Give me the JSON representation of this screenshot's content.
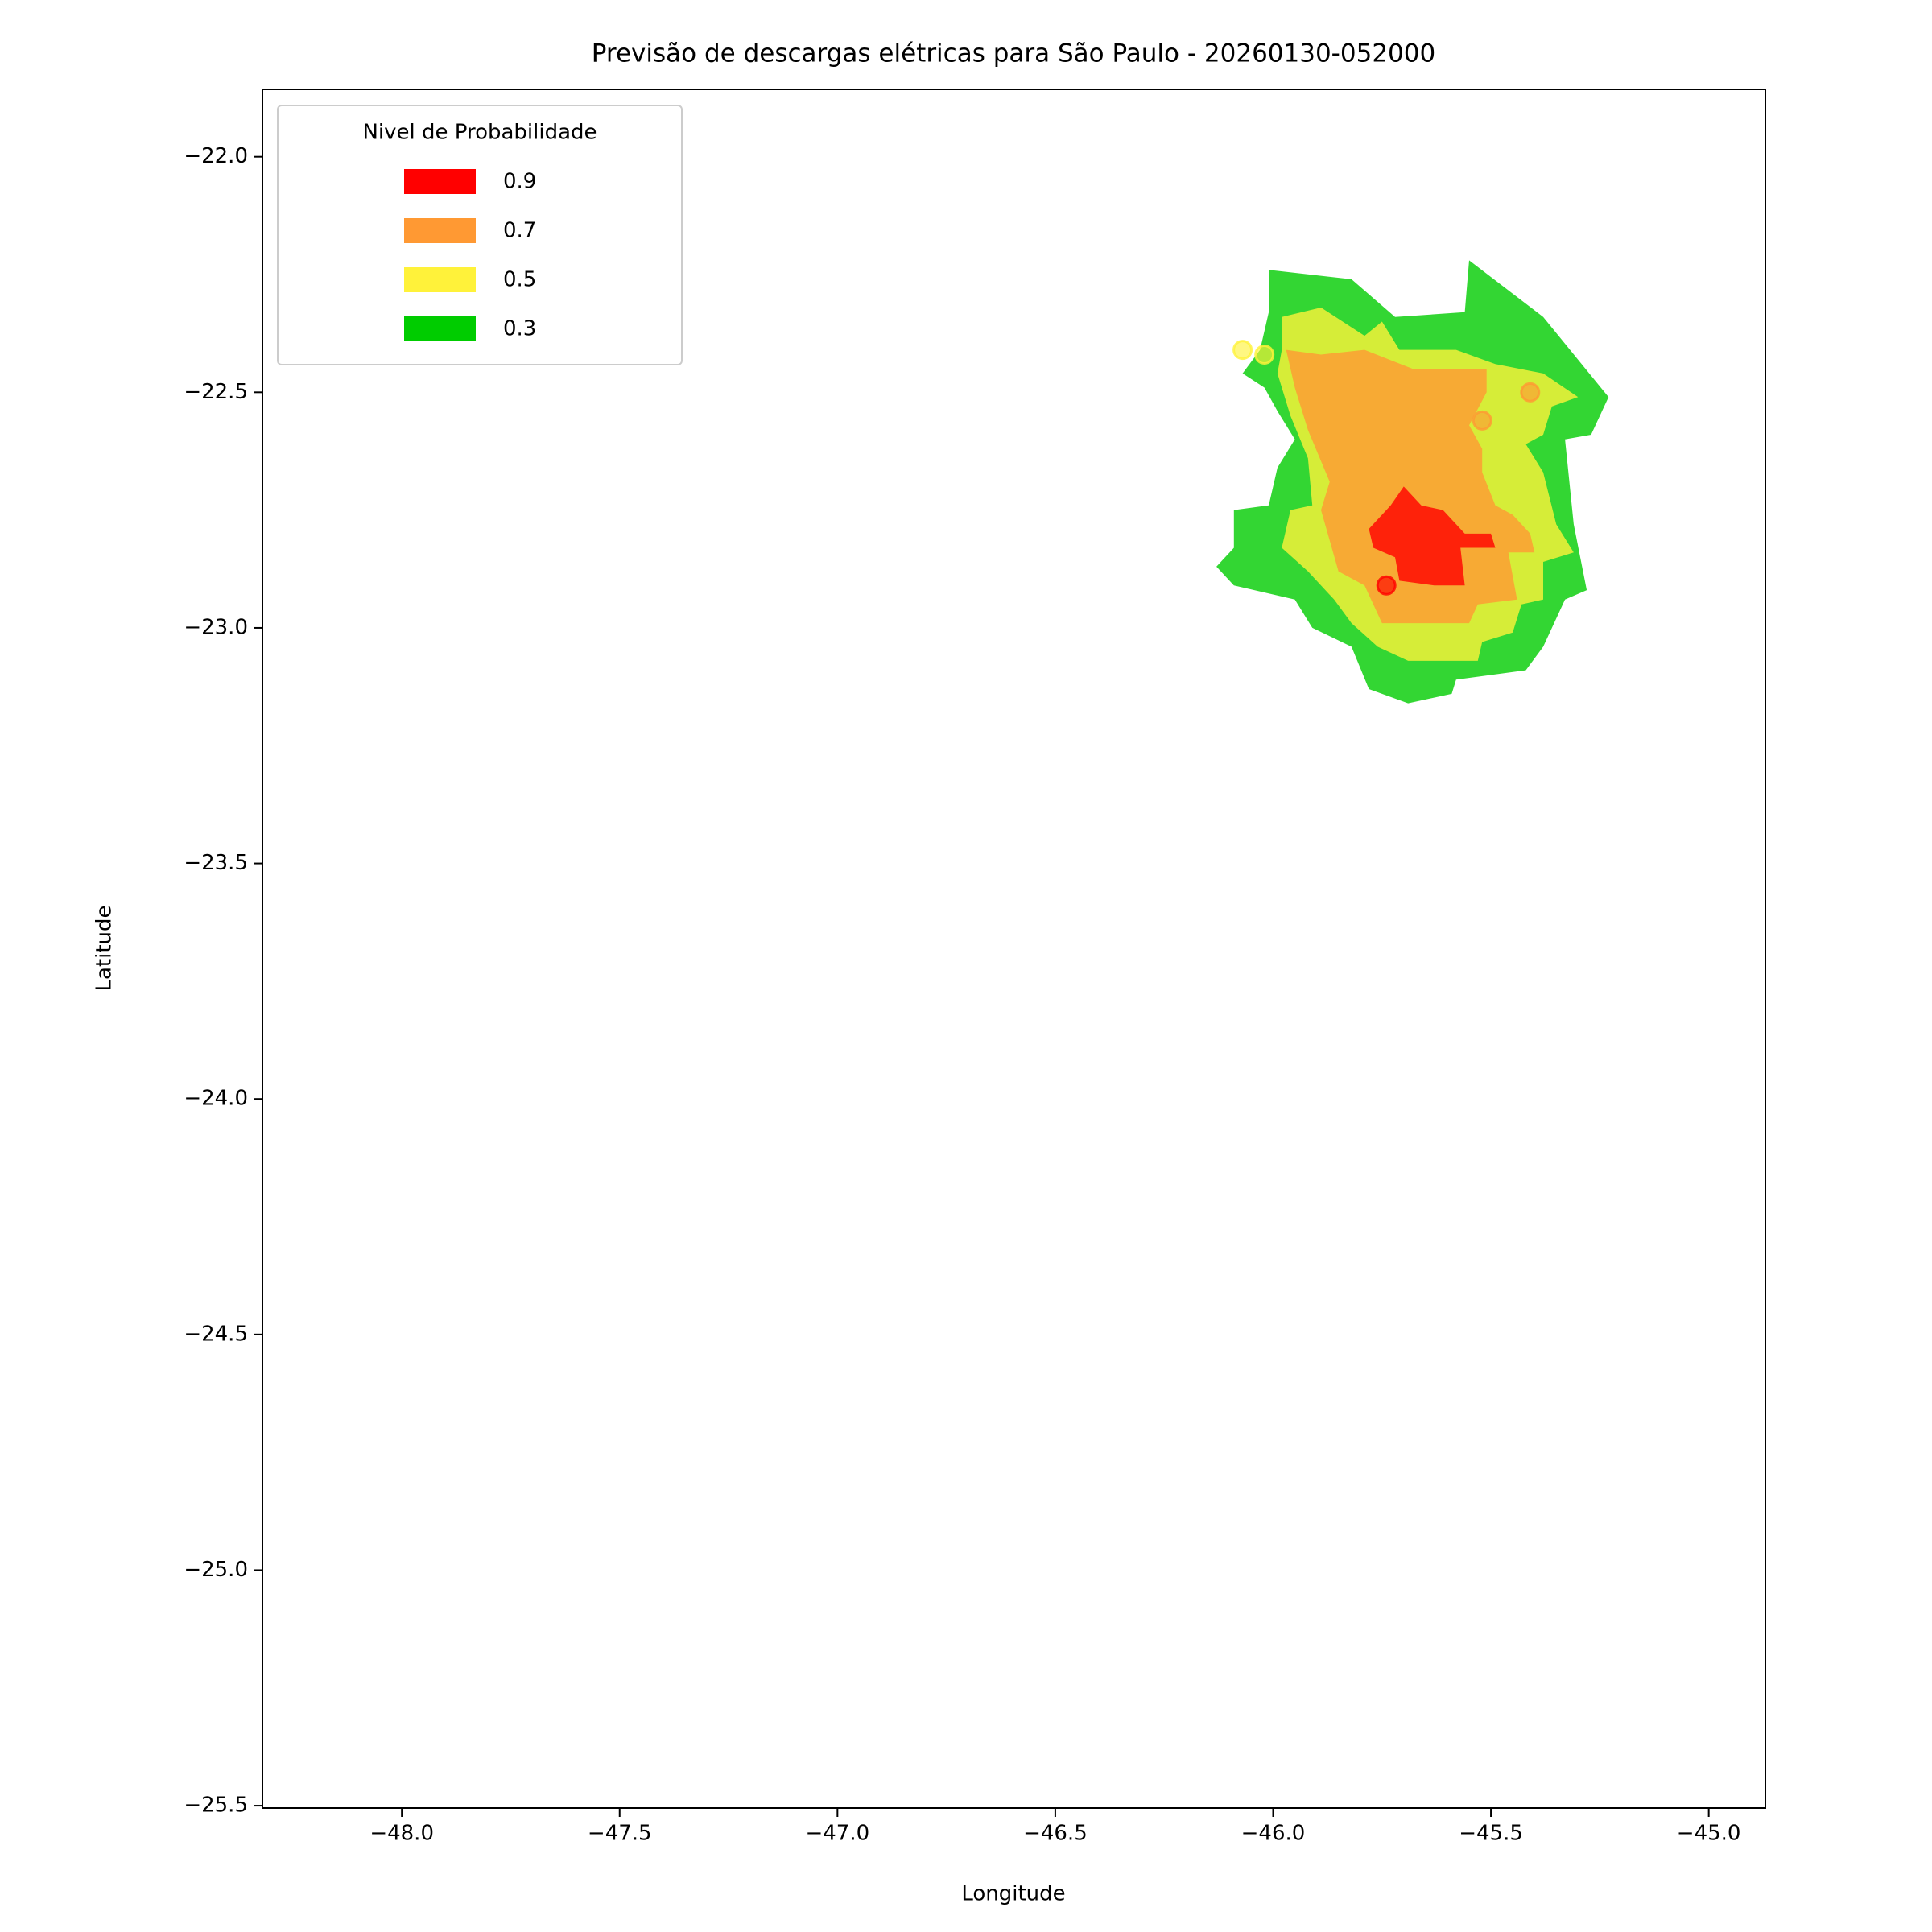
{
  "chart_data": {
    "type": "contour-map",
    "title": "Previsão de descargas elétricas para São Paulo - 20260130-052000",
    "x_label": "Longitude",
    "y_label": "Latitude",
    "xlim": [
      -48.32,
      -44.87
    ],
    "ylim": [
      -25.505,
      -21.857
    ],
    "xticks": [
      {
        "value": -48,
        "label": "−48.0"
      },
      {
        "value": -47.5,
        "label": "−47.5"
      },
      {
        "value": -47,
        "label": "−47.0"
      },
      {
        "value": -46.5,
        "label": "−46.5"
      },
      {
        "value": -46,
        "label": "−46.0"
      },
      {
        "value": -45.5,
        "label": "−45.5"
      },
      {
        "value": -45,
        "label": "−45.0"
      }
    ],
    "yticks": [
      {
        "value": -22,
        "label": "−22.0"
      },
      {
        "value": -22.5,
        "label": "−22.5"
      },
      {
        "value": -23,
        "label": "−23.0"
      },
      {
        "value": -23.5,
        "label": "−23.5"
      },
      {
        "value": -24,
        "label": "−24.0"
      },
      {
        "value": -24.5,
        "label": "−24.5"
      },
      {
        "value": -25,
        "label": "−25.0"
      },
      {
        "value": -25.5,
        "label": "−25.5"
      }
    ],
    "legend_title": "Nivel de Probabilidade",
    "legend": "upper left",
    "alpha": 0.8,
    "series": [
      {
        "name": "0.9",
        "color": "#ff0000",
        "x": [
          -45.78,
          -45.73,
          -45.7,
          -45.66,
          -45.61,
          -45.56,
          -45.5,
          -45.49,
          -45.57,
          -45.56,
          -45.63,
          -45.71,
          -45.72,
          -45.77
        ],
        "y": [
          -22.79,
          -22.74,
          -22.7,
          -22.74,
          -22.75,
          -22.8,
          -22.8,
          -22.83,
          -22.83,
          -22.91,
          -22.91,
          -22.9,
          -22.85,
          -22.83
        ],
        "point_x": [
          -45.74
        ],
        "point_y": [
          -22.91
        ]
      },
      {
        "name": "0.7",
        "color": "#ff9933",
        "x": [
          -45.97,
          -45.89,
          -45.79,
          -45.68,
          -45.51,
          -45.51,
          -45.55,
          -45.52,
          -45.52,
          -45.49,
          -45.45,
          -45.41,
          -45.4,
          -45.46,
          -45.44,
          -45.53,
          -45.55,
          -45.75,
          -45.79,
          -45.85,
          -45.89,
          -45.87,
          -45.92,
          -45.95
        ],
        "y": [
          -22.41,
          -22.42,
          -22.41,
          -22.45,
          -22.45,
          -22.5,
          -22.57,
          -22.62,
          -22.67,
          -22.74,
          -22.76,
          -22.8,
          -22.84,
          -22.84,
          -22.94,
          -22.95,
          -22.99,
          -22.99,
          -22.91,
          -22.88,
          -22.75,
          -22.69,
          -22.58,
          -22.49
        ],
        "point_x": [
          -45.52,
          -45.41
        ],
        "point_y": [
          -22.56,
          -22.5
        ]
      },
      {
        "name": "0.5",
        "color": "#fff23a",
        "x": [
          -45.98,
          -45.89,
          -45.79,
          -45.75,
          -45.71,
          -45.58,
          -45.49,
          -45.38,
          -45.3,
          -45.36,
          -45.38,
          -45.42,
          -45.38,
          -45.35,
          -45.31,
          -45.38,
          -45.38,
          -45.43,
          -45.45,
          -45.52,
          -45.53,
          -45.69,
          -45.76,
          -45.82,
          -45.86,
          -45.92,
          -45.98,
          -45.96,
          -45.91,
          -45.92,
          -45.96,
          -45.99,
          -45.98
        ],
        "y": [
          -22.34,
          -22.32,
          -22.38,
          -22.35,
          -22.41,
          -22.41,
          -22.44,
          -22.46,
          -22.51,
          -22.53,
          -22.59,
          -22.61,
          -22.67,
          -22.78,
          -22.84,
          -22.86,
          -22.94,
          -22.95,
          -23.01,
          -23.03,
          -23.07,
          -23.07,
          -23.04,
          -22.99,
          -22.94,
          -22.88,
          -22.83,
          -22.75,
          -22.74,
          -22.64,
          -22.55,
          -22.46,
          -22.41
        ],
        "point_x": [
          -46.07,
          -46.02
        ],
        "point_y": [
          -22.41,
          -22.42
        ]
      },
      {
        "name": "0.3",
        "color": "#00cc00",
        "x": [
          -46.01,
          -45.82,
          -45.72,
          -45.56,
          -45.55,
          -45.38,
          -45.23,
          -45.27,
          -45.33,
          -45.31,
          -45.28,
          -45.33,
          -45.38,
          -45.42,
          -45.58,
          -45.59,
          -45.69,
          -45.78,
          -45.82,
          -45.91,
          -45.95,
          -46.09,
          -46.13,
          -46.09,
          -46.09,
          -46.01,
          -45.99,
          -45.95,
          -45.99,
          -46.02,
          -46.07,
          -46.03,
          -46.01
        ],
        "y": [
          -22.24,
          -22.26,
          -22.34,
          -22.33,
          -22.22,
          -22.34,
          -22.51,
          -22.59,
          -22.6,
          -22.78,
          -22.92,
          -22.94,
          -23.04,
          -23.09,
          -23.11,
          -23.14,
          -23.16,
          -23.13,
          -23.04,
          -23.0,
          -22.94,
          -22.91,
          -22.87,
          -22.83,
          -22.75,
          -22.74,
          -22.66,
          -22.6,
          -22.54,
          -22.49,
          -22.46,
          -22.41,
          -22.33
        ]
      }
    ]
  }
}
